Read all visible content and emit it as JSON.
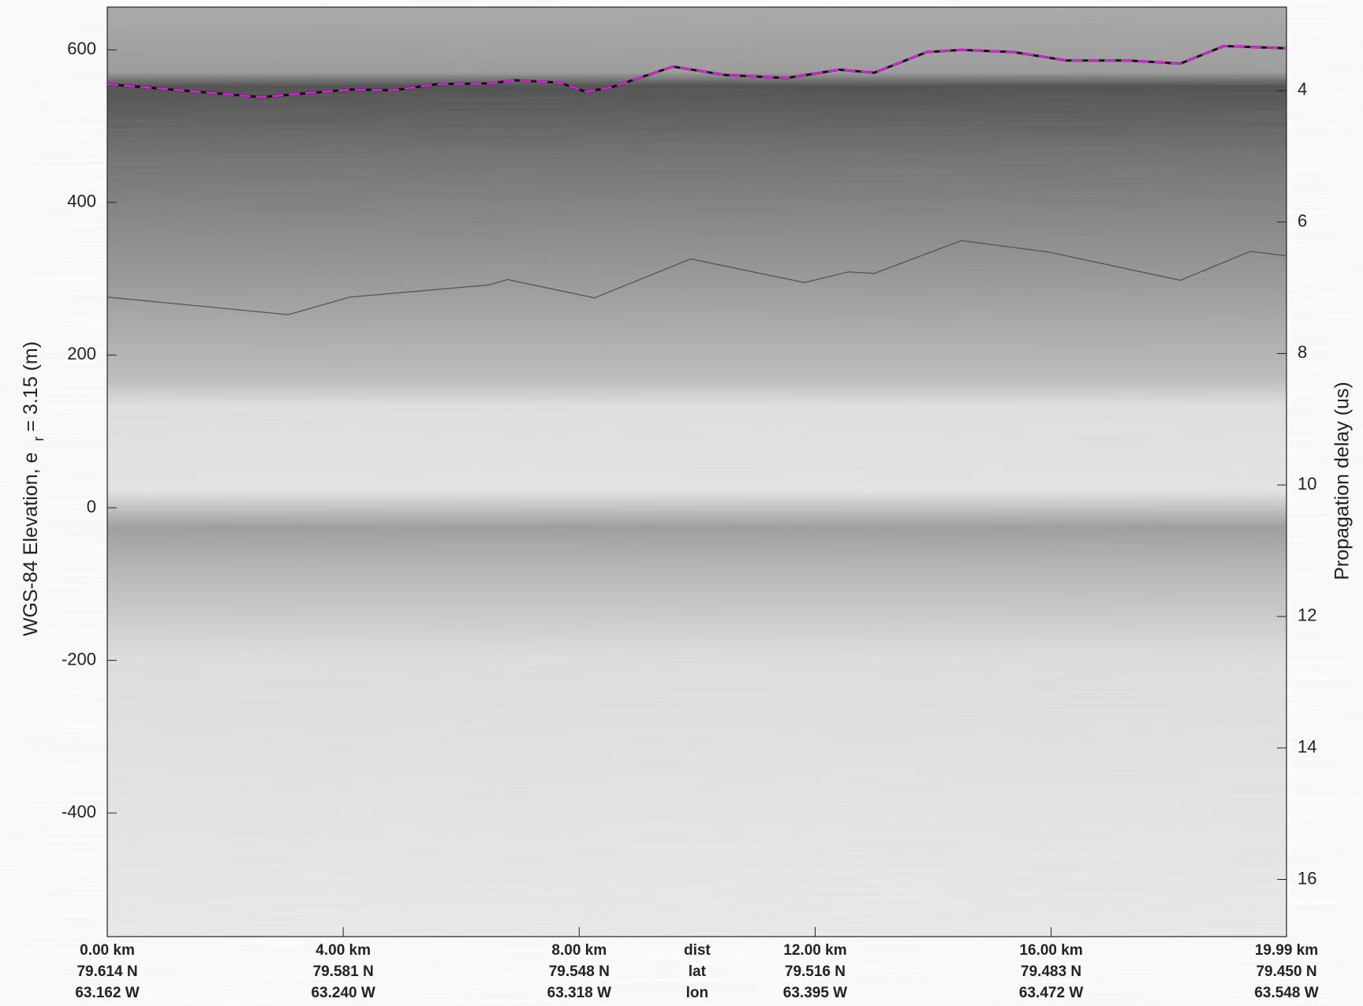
{
  "chart_data": {
    "type": "echogram",
    "y_label": [
      "WGS-84 Elevation, e",
      "r",
      "= 3.15 (m)"
    ],
    "y2_label": "Propagation delay (us)",
    "xlim": [
      0,
      19.99
    ],
    "xticks": [
      {
        "value": 0,
        "label": "0.00 km"
      },
      {
        "value": 4,
        "label": "4.00 km"
      },
      {
        "value": 8,
        "label": "8.00 km"
      },
      {
        "value": 12,
        "label": "12.00 km"
      },
      {
        "value": 16,
        "label": "16.00 km"
      },
      {
        "value": 19.99,
        "label": "19.99 km"
      }
    ],
    "lat_labels": [
      "79.614 N",
      "79.581 N",
      "79.548 N",
      "79.516 N",
      "79.483 N",
      "79.450 N"
    ],
    "lon_labels": [
      "63.162 W",
      "63.240 W",
      "63.318 W",
      "63.395 W",
      "63.472 W",
      "63.548 W"
    ],
    "row_titles": [
      "dist",
      "lat",
      "lon"
    ],
    "ylim": [
      -562,
      656
    ],
    "yticks": [
      -400,
      -200,
      0,
      200,
      400,
      600
    ],
    "y2lim": [
      16.87,
      2.73
    ],
    "y2ticks": [
      4,
      6,
      8,
      10,
      12,
      14,
      16
    ],
    "lines": [
      {
        "color": "#e020e0",
        "dashed": true,
        "x": [
          0,
          2.62,
          4.11,
          4.85,
          5.59,
          6.48,
          6.92,
          7.67,
          8.11,
          8.55,
          9.59,
          10.48,
          11.52,
          12.41,
          13.0,
          13.89,
          14.48,
          15.37,
          16.26,
          17.3,
          18.19,
          18.93,
          19.99
        ],
        "values": [
          555,
          538,
          548,
          547,
          555,
          556,
          560,
          557,
          545,
          551,
          578,
          567,
          563,
          574,
          570,
          597,
          600,
          597,
          586,
          586,
          582,
          605,
          602
        ]
      },
      {
        "color": "#555555",
        "dashed": false,
        "x": [
          0,
          3.07,
          4.11,
          6.48,
          6.78,
          8.26,
          9.89,
          11.82,
          12.56,
          13.0,
          14.48,
          15.96,
          18.19,
          19.38,
          19.99
        ],
        "values": [
          276,
          253,
          276,
          292,
          299,
          275,
          326,
          295,
          309,
          307,
          350,
          335,
          298,
          336,
          330
        ]
      }
    ]
  }
}
